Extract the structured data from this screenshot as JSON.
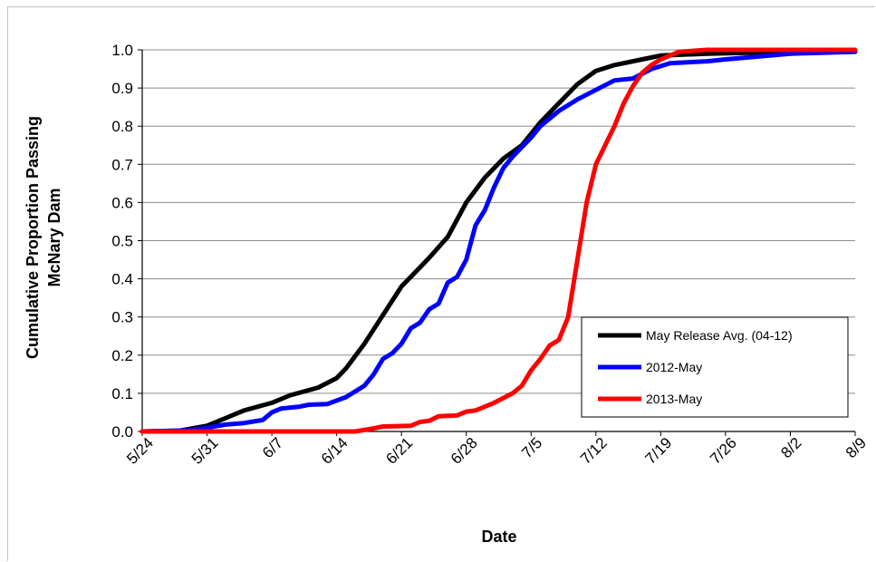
{
  "chart_data": {
    "type": "line",
    "title": "",
    "xlabel": "Date",
    "ylabel_lines": [
      "Cumulative Proportion Passing",
      "McNary Dam"
    ],
    "x_tick_labels": [
      "5/24",
      "5/31",
      "6/7",
      "6/14",
      "6/21",
      "6/28",
      "7/5",
      "7/12",
      "7/19",
      "7/26",
      "8/2",
      "8/9"
    ],
    "x_tick_dates": [
      "05-24",
      "05-31",
      "06-07",
      "06-14",
      "06-21",
      "06-28",
      "07-05",
      "07-12",
      "07-19",
      "07-26",
      "08-02",
      "08-09"
    ],
    "xlim": [
      "05-24",
      "08-09"
    ],
    "y_tick_labels": [
      "0.0",
      "0.1",
      "0.2",
      "0.3",
      "0.4",
      "0.5",
      "0.6",
      "0.7",
      "0.8",
      "0.9",
      "1.0"
    ],
    "ylim": [
      0,
      1
    ],
    "grid": "horizontal",
    "legend_position": "bottom-right",
    "series": [
      {
        "name": "May Release Avg. (04-12)",
        "color": "#000000",
        "points": [
          [
            "05-24",
            0.0
          ],
          [
            "05-28",
            0.002
          ],
          [
            "05-31",
            0.015
          ],
          [
            "06-02",
            0.035
          ],
          [
            "06-04",
            0.055
          ],
          [
            "06-07",
            0.075
          ],
          [
            "06-09",
            0.095
          ],
          [
            "06-12",
            0.115
          ],
          [
            "06-14",
            0.14
          ],
          [
            "06-15",
            0.165
          ],
          [
            "06-17",
            0.23
          ],
          [
            "06-19",
            0.305
          ],
          [
            "06-21",
            0.38
          ],
          [
            "06-23",
            0.43
          ],
          [
            "06-24",
            0.455
          ],
          [
            "06-26",
            0.51
          ],
          [
            "06-28",
            0.6
          ],
          [
            "06-30",
            0.665
          ],
          [
            "07-02",
            0.715
          ],
          [
            "07-04",
            0.75
          ],
          [
            "07-06",
            0.81
          ],
          [
            "07-08",
            0.86
          ],
          [
            "07-10",
            0.91
          ],
          [
            "07-12",
            0.945
          ],
          [
            "07-14",
            0.96
          ],
          [
            "07-17",
            0.975
          ],
          [
            "07-19",
            0.985
          ],
          [
            "07-24",
            0.99
          ],
          [
            "08-02",
            0.995
          ],
          [
            "08-09",
            0.998
          ]
        ]
      },
      {
        "name": "2012-May",
        "color": "#0000ff",
        "points": [
          [
            "05-24",
            0.0
          ],
          [
            "05-29",
            0.003
          ],
          [
            "05-31",
            0.01
          ],
          [
            "06-02",
            0.018
          ],
          [
            "06-04",
            0.022
          ],
          [
            "06-06",
            0.03
          ],
          [
            "06-07",
            0.05
          ],
          [
            "06-08",
            0.06
          ],
          [
            "06-10",
            0.065
          ],
          [
            "06-11",
            0.07
          ],
          [
            "06-13",
            0.072
          ],
          [
            "06-15",
            0.09
          ],
          [
            "06-17",
            0.12
          ],
          [
            "06-18",
            0.15
          ],
          [
            "06-19",
            0.19
          ],
          [
            "06-20",
            0.205
          ],
          [
            "06-21",
            0.23
          ],
          [
            "06-22",
            0.27
          ],
          [
            "06-23",
            0.285
          ],
          [
            "06-24",
            0.32
          ],
          [
            "06-25",
            0.335
          ],
          [
            "06-26",
            0.39
          ],
          [
            "06-27",
            0.405
          ],
          [
            "06-28",
            0.45
          ],
          [
            "06-29",
            0.54
          ],
          [
            "06-30",
            0.58
          ],
          [
            "07-01",
            0.64
          ],
          [
            "07-02",
            0.69
          ],
          [
            "07-03",
            0.72
          ],
          [
            "07-05",
            0.77
          ],
          [
            "07-06",
            0.8
          ],
          [
            "07-08",
            0.84
          ],
          [
            "07-10",
            0.87
          ],
          [
            "07-12",
            0.895
          ],
          [
            "07-14",
            0.92
          ],
          [
            "07-16",
            0.925
          ],
          [
            "07-18",
            0.95
          ],
          [
            "07-20",
            0.965
          ],
          [
            "07-24",
            0.97
          ],
          [
            "07-26",
            0.975
          ],
          [
            "08-02",
            0.99
          ],
          [
            "08-09",
            0.995
          ]
        ]
      },
      {
        "name": "2013-May",
        "color": "#ff0000",
        "points": [
          [
            "05-24",
            0.0
          ],
          [
            "06-16",
            0.0
          ],
          [
            "06-18",
            0.008
          ],
          [
            "06-19",
            0.013
          ],
          [
            "06-22",
            0.015
          ],
          [
            "06-23",
            0.025
          ],
          [
            "06-24",
            0.028
          ],
          [
            "06-25",
            0.04
          ],
          [
            "06-27",
            0.042
          ],
          [
            "06-28",
            0.052
          ],
          [
            "06-29",
            0.055
          ],
          [
            "07-01",
            0.075
          ],
          [
            "07-03",
            0.1
          ],
          [
            "07-04",
            0.12
          ],
          [
            "07-05",
            0.16
          ],
          [
            "07-06",
            0.19
          ],
          [
            "07-07",
            0.225
          ],
          [
            "07-08",
            0.24
          ],
          [
            "07-09",
            0.3
          ],
          [
            "07-10",
            0.45
          ],
          [
            "07-11",
            0.6
          ],
          [
            "07-12",
            0.7
          ],
          [
            "07-13",
            0.75
          ],
          [
            "07-14",
            0.8
          ],
          [
            "07-15",
            0.86
          ],
          [
            "07-16",
            0.905
          ],
          [
            "07-17",
            0.94
          ],
          [
            "07-18",
            0.96
          ],
          [
            "07-19",
            0.975
          ],
          [
            "07-21",
            0.995
          ],
          [
            "07-24",
            1.0
          ],
          [
            "08-09",
            1.0
          ]
        ]
      }
    ]
  }
}
